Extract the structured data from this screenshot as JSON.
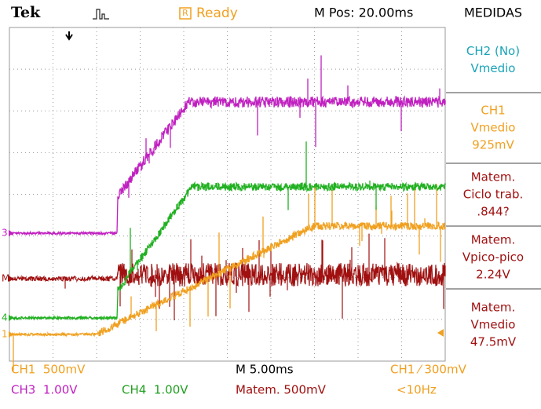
{
  "header": {
    "brand": "Tek",
    "status_icon": "R",
    "status": "Ready",
    "position": "M Pos: 20.00ms",
    "panel_title": "MEDIDAS"
  },
  "measurements": [
    {
      "color": "#1aa3b8",
      "lines": [
        "CH2 (No)",
        "Vmedio"
      ]
    },
    {
      "color": "#f0a020",
      "lines": [
        "CH1",
        "Vmedio",
        "925mV"
      ]
    },
    {
      "color": "#a01010",
      "lines": [
        "Matem.",
        "Ciclo trab.",
        ".844?"
      ]
    },
    {
      "color": "#a01010",
      "lines": [
        "Matem.",
        "Vpico-pico",
        "2.24V"
      ]
    },
    {
      "color": "#a01010",
      "lines": [
        "Matem.",
        "Vmedio",
        "47.5mV"
      ]
    }
  ],
  "markers": [
    {
      "label": "3",
      "color": "#c020c0"
    },
    {
      "label": "M",
      "color": "#a01010"
    },
    {
      "label": "4",
      "color": "#20b020"
    },
    {
      "label": "1",
      "color": "#f0a020"
    }
  ],
  "footer": {
    "ch1": "CH1  500mV",
    "timebase": "M 5.00ms",
    "trigger": "CH1 ⁄ 300mV",
    "ch3": "CH3  1.00V",
    "ch4": "CH4  1.00V",
    "math": "Matem. 500mV",
    "freq": "<10Hz"
  }
}
